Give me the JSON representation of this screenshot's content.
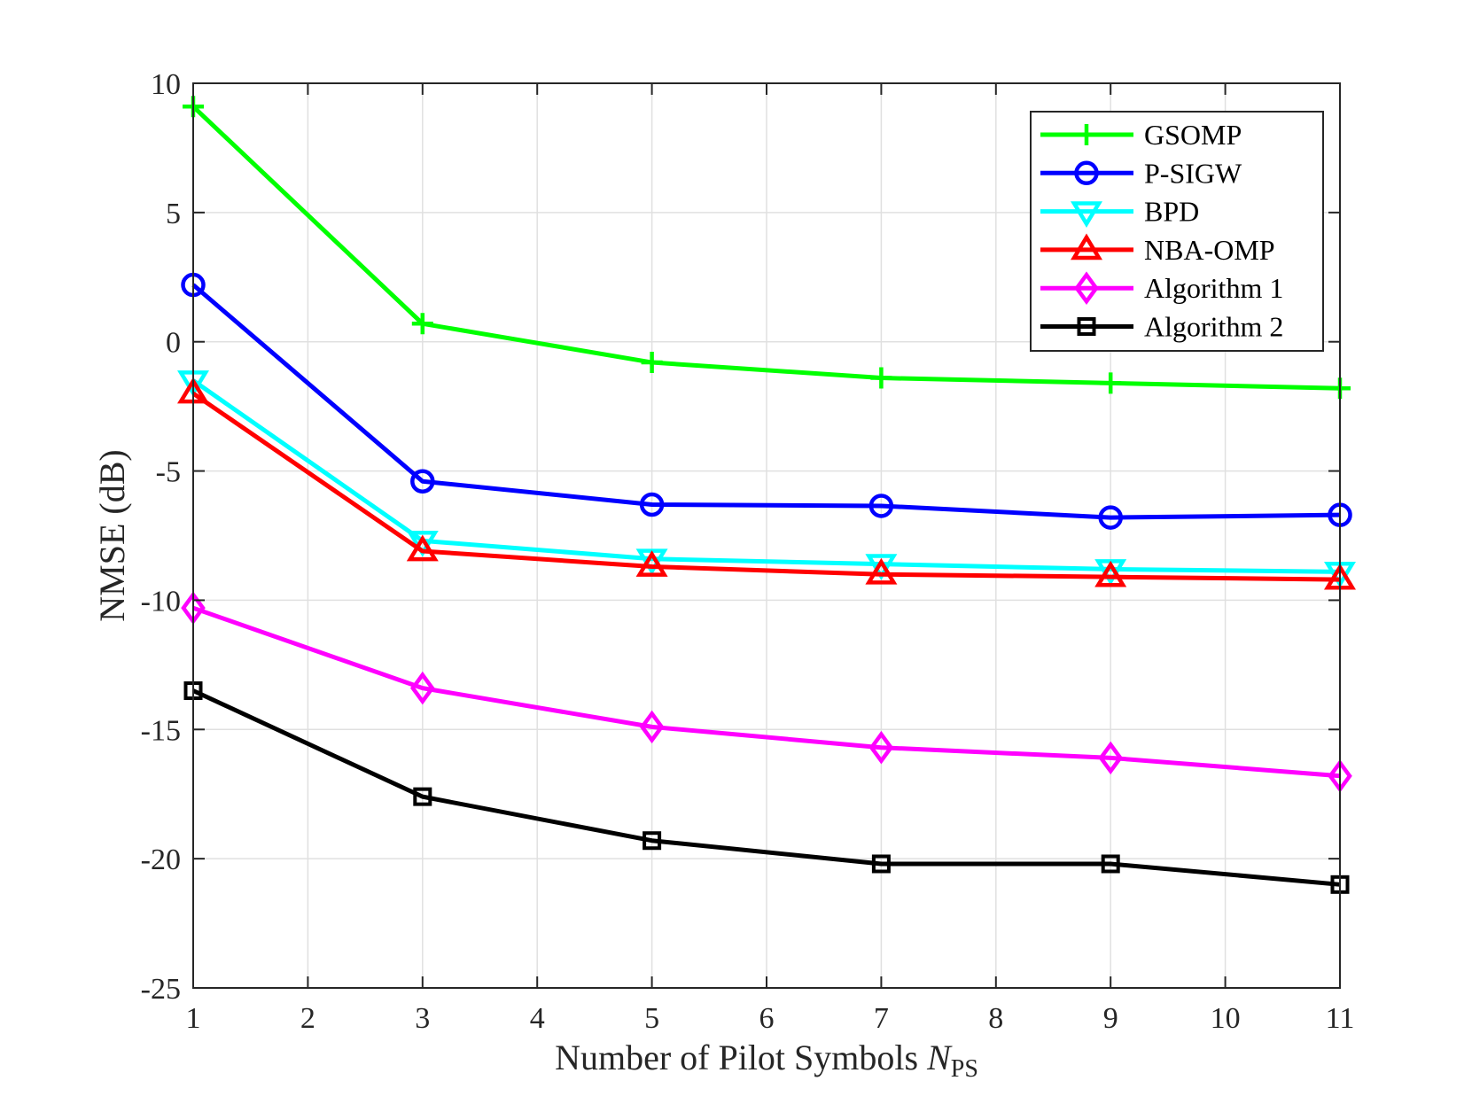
{
  "chart_data": {
    "type": "line",
    "title": "",
    "xlabel": "Number of Pilot Symbols ",
    "xlabel_symbol": "N",
    "xlabel_subscript": "PS",
    "ylabel": "NMSE (dB)",
    "xlim": [
      1,
      11
    ],
    "ylim": [
      -25,
      10
    ],
    "xticks": [
      1,
      2,
      3,
      4,
      5,
      6,
      7,
      8,
      9,
      10,
      11
    ],
    "yticks": [
      10,
      5,
      0,
      -5,
      -10,
      -15,
      -20,
      -25
    ],
    "grid": true,
    "legend_position": "top-right",
    "x": [
      1,
      3,
      5,
      7,
      9,
      11
    ],
    "series": [
      {
        "name": "GSOMP",
        "color": "#00ff00",
        "marker": "plus",
        "values": [
          9.1,
          0.7,
          -0.8,
          -1.4,
          -1.6,
          -1.8
        ]
      },
      {
        "name": "P-SIGW",
        "color": "#0000ff",
        "marker": "circle",
        "values": [
          2.2,
          -5.4,
          -6.3,
          -6.35,
          -6.8,
          -6.7
        ]
      },
      {
        "name": "BPD",
        "color": "#00ffff",
        "marker": "triangle-down",
        "values": [
          -1.5,
          -7.7,
          -8.4,
          -8.6,
          -8.8,
          -8.9
        ]
      },
      {
        "name": "NBA-OMP",
        "color": "#ff0000",
        "marker": "triangle-up",
        "values": [
          -2.0,
          -8.1,
          -8.7,
          -9.0,
          -9.1,
          -9.2
        ]
      },
      {
        "name": "Algorithm 1",
        "color": "#ff00ff",
        "marker": "diamond",
        "values": [
          -10.3,
          -13.4,
          -14.9,
          -15.7,
          -16.1,
          -16.8
        ]
      },
      {
        "name": "Algorithm 2",
        "color": "#000000",
        "marker": "square",
        "values": [
          -13.5,
          -17.6,
          -19.3,
          -20.2,
          -20.2,
          -21.0
        ]
      }
    ]
  }
}
